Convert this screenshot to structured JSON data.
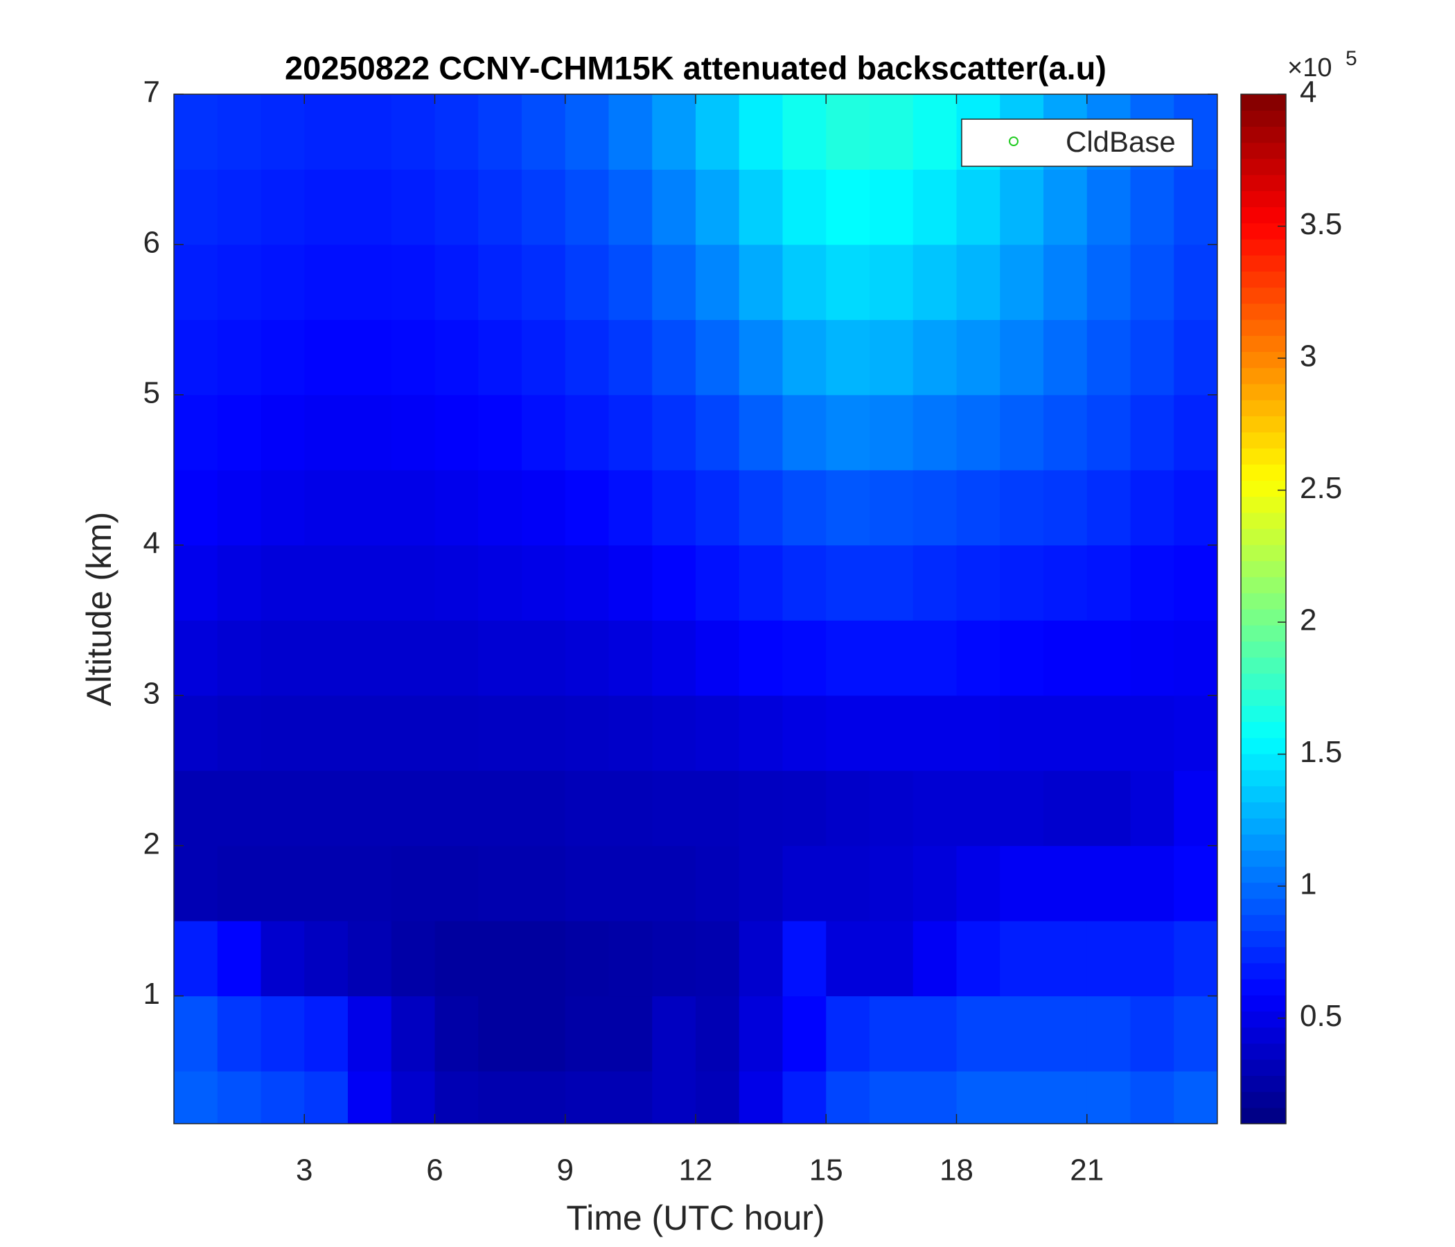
{
  "chart_data": {
    "type": "heatmap",
    "title": "20250822 CCNY-CHM15K attenuated backscatter(a.u)",
    "xlabel": "Time (UTC hour)",
    "ylabel": "Altitude (km)",
    "xlim": [
      0,
      24
    ],
    "ylim": [
      0.15,
      7
    ],
    "xticks": [
      3,
      6,
      9,
      12,
      15,
      18,
      21
    ],
    "yticks": [
      1,
      2,
      3,
      4,
      5,
      6,
      7
    ],
    "x_edges": [
      0,
      1,
      2,
      3,
      4,
      5,
      6,
      7,
      8,
      9,
      10,
      11,
      12,
      13,
      14,
      15,
      16,
      17,
      18,
      19,
      20,
      21,
      22,
      23,
      24
    ],
    "y_edges": [
      0.15,
      0.5,
      1,
      1.5,
      2,
      2.5,
      3,
      3.5,
      4,
      4.5,
      5,
      5.5,
      6,
      6.5,
      7
    ],
    "values": [
      [
        95000,
        90000,
        85000,
        80000,
        55000,
        40000,
        30000,
        28000,
        28000,
        30000,
        30000,
        35000,
        32000,
        50000,
        70000,
        85000,
        90000,
        90000,
        95000,
        95000,
        95000,
        95000,
        90000,
        95000
      ],
      [
        90000,
        80000,
        75000,
        70000,
        50000,
        35000,
        25000,
        22000,
        22000,
        25000,
        25000,
        35000,
        30000,
        45000,
        60000,
        75000,
        80000,
        80000,
        85000,
        85000,
        85000,
        85000,
        80000,
        85000
      ],
      [
        70000,
        60000,
        40000,
        35000,
        30000,
        25000,
        22000,
        22000,
        22000,
        24000,
        25000,
        27000,
        28000,
        40000,
        65000,
        45000,
        45000,
        55000,
        65000,
        70000,
        70000,
        70000,
        70000,
        75000
      ],
      [
        30000,
        28000,
        28000,
        28000,
        28000,
        27000,
        27000,
        28000,
        28000,
        30000,
        30000,
        30000,
        32000,
        35000,
        40000,
        40000,
        42000,
        45000,
        50000,
        55000,
        55000,
        55000,
        55000,
        60000
      ],
      [
        30000,
        30000,
        30000,
        30000,
        30000,
        30000,
        30000,
        30000,
        30000,
        32000,
        32000,
        33000,
        33000,
        35000,
        36000,
        38000,
        40000,
        42000,
        42000,
        42000,
        40000,
        40000,
        45000,
        55000
      ],
      [
        38000,
        36000,
        35000,
        35000,
        35000,
        35000,
        35000,
        36000,
        36000,
        37000,
        38000,
        40000,
        42000,
        45000,
        48000,
        50000,
        50000,
        50000,
        50000,
        48000,
        48000,
        48000,
        48000,
        50000
      ],
      [
        45000,
        42000,
        40000,
        40000,
        40000,
        40000,
        40000,
        42000,
        42000,
        44000,
        46000,
        50000,
        55000,
        60000,
        62000,
        65000,
        65000,
        65000,
        62000,
        60000,
        58000,
        58000,
        56000,
        55000
      ],
      [
        52000,
        48000,
        45000,
        45000,
        45000,
        45000,
        46000,
        48000,
        50000,
        52000,
        55000,
        60000,
        65000,
        70000,
        75000,
        78000,
        78000,
        75000,
        72000,
        70000,
        68000,
        66000,
        62000,
        60000
      ],
      [
        58000,
        55000,
        52000,
        50000,
        50000,
        50000,
        52000,
        54000,
        56000,
        60000,
        64000,
        70000,
        75000,
        82000,
        88000,
        92000,
        90000,
        88000,
        85000,
        82000,
        80000,
        76000,
        70000,
        66000
      ],
      [
        62000,
        60000,
        57000,
        55000,
        55000,
        56000,
        58000,
        60000,
        64000,
        68000,
        72000,
        78000,
        85000,
        95000,
        105000,
        110000,
        108000,
        104000,
        100000,
        95000,
        90000,
        85000,
        78000,
        72000
      ],
      [
        66000,
        64000,
        62000,
        60000,
        60000,
        61000,
        63000,
        66000,
        70000,
        75000,
        80000,
        88000,
        98000,
        110000,
        122000,
        128000,
        126000,
        120000,
        115000,
        108000,
        100000,
        92000,
        85000,
        78000
      ],
      [
        70000,
        68000,
        66000,
        64000,
        64000,
        65000,
        68000,
        72000,
        76000,
        82000,
        88000,
        98000,
        110000,
        124000,
        136000,
        142000,
        140000,
        134000,
        128000,
        118000,
        108000,
        98000,
        90000,
        82000
      ],
      [
        74000,
        72000,
        70000,
        68000,
        68000,
        70000,
        73000,
        77000,
        82000,
        88000,
        96000,
        108000,
        122000,
        138000,
        150000,
        156000,
        154000,
        148000,
        140000,
        128000,
        116000,
        104000,
        94000,
        86000
      ],
      [
        78000,
        76000,
        74000,
        72000,
        72000,
        74000,
        77000,
        82000,
        88000,
        95000,
        105000,
        118000,
        134000,
        150000,
        162000,
        168000,
        166000,
        160000,
        150000,
        136000,
        122000,
        110000,
        98000,
        90000
      ]
    ],
    "colormap": "jet",
    "clim": [
      10000,
      400000
    ],
    "cticks": [
      {
        "value": 50000,
        "label": "0.5"
      },
      {
        "value": 100000,
        "label": "1"
      },
      {
        "value": 150000,
        "label": "1.5"
      },
      {
        "value": 200000,
        "label": "2"
      },
      {
        "value": 250000,
        "label": "2.5"
      },
      {
        "value": 300000,
        "label": "3"
      },
      {
        "value": 350000,
        "label": "3.5"
      },
      {
        "value": 400000,
        "label": "4"
      }
    ],
    "colorbar_multiplier": "×10",
    "colorbar_exponent": "5",
    "series": [
      {
        "name": "CldBase",
        "color": "#22cc22",
        "marker": "o"
      }
    ],
    "legend": "upper right"
  }
}
